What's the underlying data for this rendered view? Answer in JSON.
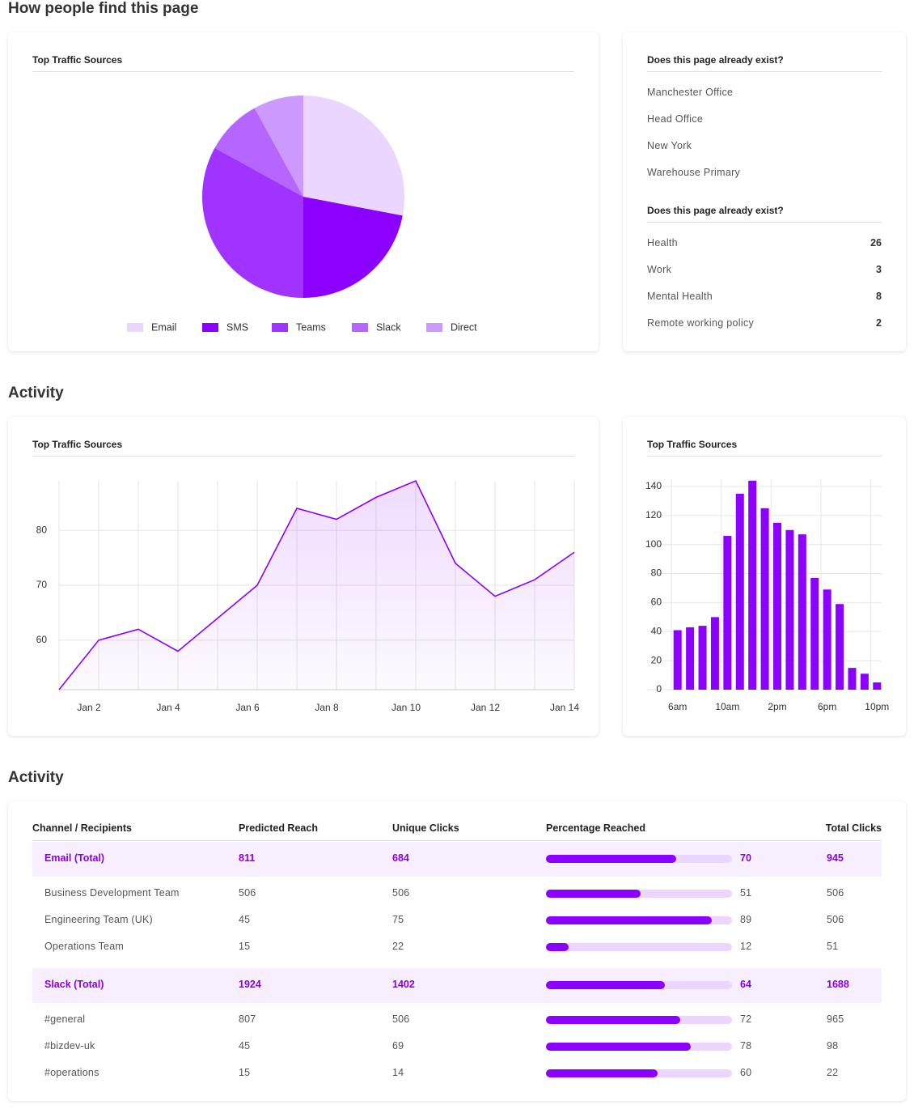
{
  "sections": [
    "How people find this page",
    "Activity",
    "Activity"
  ],
  "chart_data": [
    {
      "type": "pie",
      "title": "Top Traffic Sources",
      "categories": [
        "Email",
        "SMS",
        "Teams",
        "Slack",
        "Direct"
      ],
      "values": [
        28,
        22,
        33,
        9,
        8
      ],
      "colors": [
        "#ead6ff",
        "#8c00ff",
        "#a033ff",
        "#b666ff",
        "#cc99ff"
      ]
    },
    {
      "type": "line",
      "title": "Top Traffic Sources",
      "categories": [
        null,
        "Jan 2",
        null,
        "Jan 4",
        null,
        "Jan 6",
        null,
        "Jan 8",
        null,
        "Jan 10",
        null,
        "Jan 12",
        null,
        "Jan 14"
      ],
      "values": [
        51,
        60,
        62,
        58,
        64,
        70,
        84,
        82,
        86,
        89,
        74,
        68,
        71,
        76
      ],
      "color": "#8c00ff",
      "ylim": [
        51,
        89
      ],
      "yticks": [
        60,
        70,
        80
      ],
      "grid": true
    },
    {
      "type": "bar",
      "title": "Top Traffic Sources",
      "categories": [
        "6am",
        null,
        null,
        null,
        "10am",
        null,
        null,
        null,
        "2pm",
        null,
        null,
        null,
        "6pm",
        null,
        null,
        null,
        "10pm"
      ],
      "values": [
        41,
        43,
        44,
        50,
        106,
        135,
        144,
        125,
        115,
        110,
        107,
        77,
        69,
        59,
        15,
        11,
        5
      ],
      "color": "#8c00ff",
      "ylim": [
        0,
        145
      ],
      "yticks": [
        0,
        20,
        40,
        60,
        80,
        100,
        120,
        140
      ],
      "grid": true
    }
  ],
  "lists": [
    {
      "title": "Does this page already exist?",
      "items": [
        "Manchester Office",
        "Head Office",
        "New York",
        "Warehouse Primary"
      ]
    },
    {
      "title": "Does this page already exist?",
      "items": [
        {
          "label": "Health",
          "value": 26
        },
        {
          "label": "Work",
          "value": 3
        },
        {
          "label": "Mental Health",
          "value": 8
        },
        {
          "label": "Remote working policy",
          "value": 2
        }
      ]
    }
  ],
  "table": {
    "columns": [
      "Channel / Recipients",
      "Predicted Reach",
      "Unique Clicks",
      "Percentage Reached",
      "Total Clicks"
    ],
    "groups": [
      {
        "total": [
          "Email (Total)",
          811,
          684,
          70,
          945
        ],
        "rows": [
          [
            "Business Development Team",
            506,
            506,
            51,
            506
          ],
          [
            "Engineering Team (UK)",
            45,
            75,
            89,
            506
          ],
          [
            "Operations Team",
            15,
            22,
            12,
            51
          ]
        ]
      },
      {
        "total": [
          "Slack (Total)",
          1924,
          1402,
          64,
          1688
        ],
        "rows": [
          [
            "#general",
            807,
            506,
            72,
            965
          ],
          [
            "#bizdev-uk",
            45,
            69,
            78,
            98
          ],
          [
            "#operations",
            15,
            14,
            60,
            22
          ]
        ]
      }
    ]
  }
}
